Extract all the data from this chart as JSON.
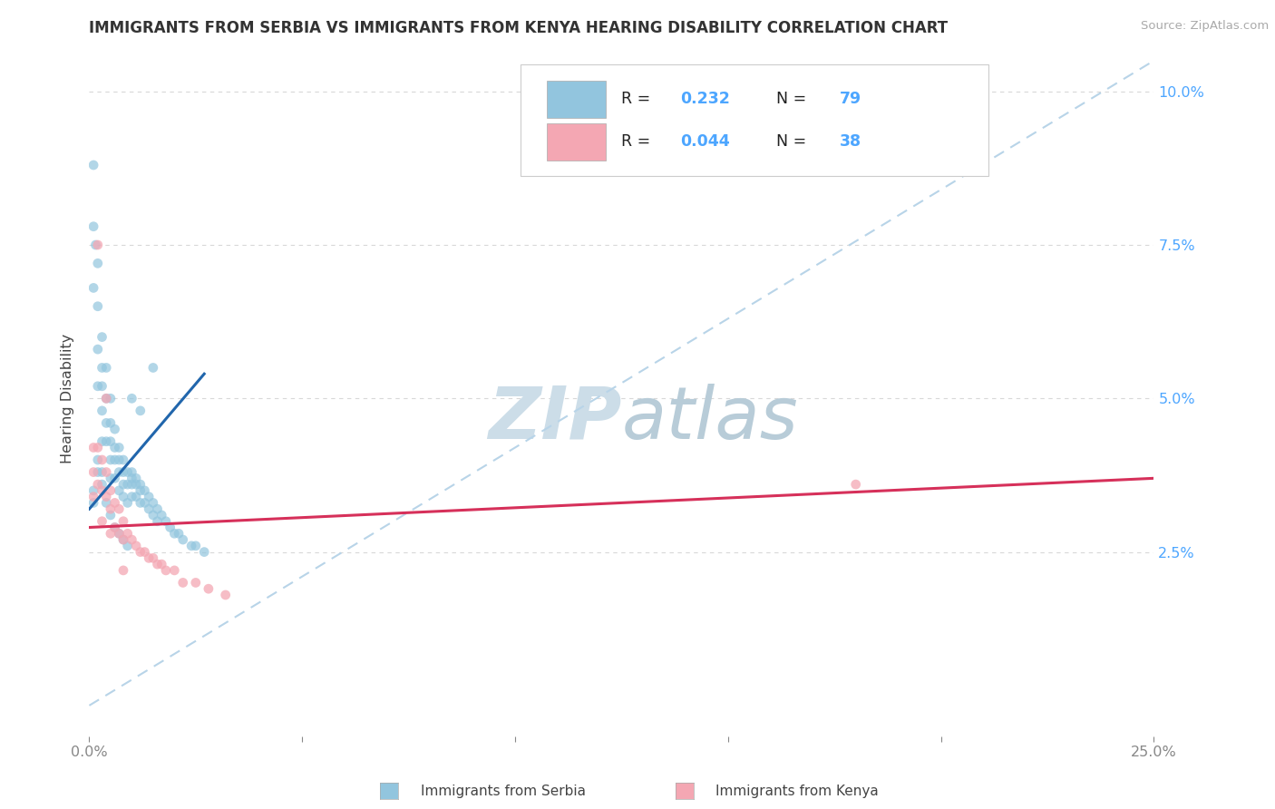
{
  "title": "IMMIGRANTS FROM SERBIA VS IMMIGRANTS FROM KENYA HEARING DISABILITY CORRELATION CHART",
  "source_text": "Source: ZipAtlas.com",
  "ylabel": "Hearing Disability",
  "serbia_color": "#92c5de",
  "kenya_color": "#f4a7b3",
  "serbia_line_color": "#2166ac",
  "kenya_line_color": "#d6305a",
  "dashed_line_color": "#b8d4e8",
  "watermark_zip": "ZIP",
  "watermark_atlas": "atlas",
  "watermark_color_zip": "#c8dce8",
  "watermark_color_atlas": "#b8cfe0",
  "background_color": "#ffffff",
  "grid_color": "#d8d8d8",
  "serbia_x": [
    0.001,
    0.001,
    0.001,
    0.0015,
    0.002,
    0.002,
    0.002,
    0.002,
    0.003,
    0.003,
    0.003,
    0.003,
    0.003,
    0.004,
    0.004,
    0.004,
    0.004,
    0.005,
    0.005,
    0.005,
    0.005,
    0.005,
    0.006,
    0.006,
    0.006,
    0.006,
    0.007,
    0.007,
    0.007,
    0.007,
    0.008,
    0.008,
    0.008,
    0.008,
    0.009,
    0.009,
    0.009,
    0.01,
    0.01,
    0.01,
    0.01,
    0.011,
    0.011,
    0.011,
    0.012,
    0.012,
    0.012,
    0.013,
    0.013,
    0.014,
    0.014,
    0.015,
    0.015,
    0.016,
    0.016,
    0.017,
    0.018,
    0.019,
    0.02,
    0.021,
    0.022,
    0.024,
    0.025,
    0.027,
    0.001,
    0.001,
    0.002,
    0.002,
    0.003,
    0.003,
    0.004,
    0.005,
    0.006,
    0.007,
    0.008,
    0.009,
    0.01,
    0.012,
    0.015
  ],
  "serbia_y": [
    0.088,
    0.078,
    0.068,
    0.075,
    0.072,
    0.065,
    0.058,
    0.052,
    0.06,
    0.055,
    0.052,
    0.048,
    0.043,
    0.055,
    0.05,
    0.046,
    0.043,
    0.05,
    0.046,
    0.043,
    0.04,
    0.037,
    0.045,
    0.042,
    0.04,
    0.037,
    0.042,
    0.04,
    0.038,
    0.035,
    0.04,
    0.038,
    0.036,
    0.034,
    0.038,
    0.036,
    0.033,
    0.038,
    0.037,
    0.036,
    0.034,
    0.037,
    0.036,
    0.034,
    0.036,
    0.035,
    0.033,
    0.035,
    0.033,
    0.034,
    0.032,
    0.033,
    0.031,
    0.032,
    0.03,
    0.031,
    0.03,
    0.029,
    0.028,
    0.028,
    0.027,
    0.026,
    0.026,
    0.025,
    0.035,
    0.033,
    0.04,
    0.038,
    0.038,
    0.036,
    0.033,
    0.031,
    0.029,
    0.028,
    0.027,
    0.026,
    0.05,
    0.048,
    0.055
  ],
  "kenya_x": [
    0.001,
    0.001,
    0.001,
    0.002,
    0.002,
    0.003,
    0.003,
    0.003,
    0.004,
    0.004,
    0.005,
    0.005,
    0.005,
    0.006,
    0.006,
    0.007,
    0.007,
    0.008,
    0.008,
    0.009,
    0.01,
    0.011,
    0.012,
    0.013,
    0.014,
    0.015,
    0.016,
    0.017,
    0.018,
    0.02,
    0.022,
    0.025,
    0.028,
    0.032,
    0.18,
    0.002,
    0.004,
    0.008
  ],
  "kenya_y": [
    0.042,
    0.038,
    0.034,
    0.042,
    0.036,
    0.04,
    0.035,
    0.03,
    0.038,
    0.034,
    0.035,
    0.032,
    0.028,
    0.033,
    0.029,
    0.032,
    0.028,
    0.03,
    0.027,
    0.028,
    0.027,
    0.026,
    0.025,
    0.025,
    0.024,
    0.024,
    0.023,
    0.023,
    0.022,
    0.022,
    0.02,
    0.02,
    0.019,
    0.018,
    0.036,
    0.075,
    0.05,
    0.022
  ],
  "xlim_min": 0.0,
  "xlim_max": 0.25,
  "ylim_min": -0.005,
  "ylim_max": 0.105
}
